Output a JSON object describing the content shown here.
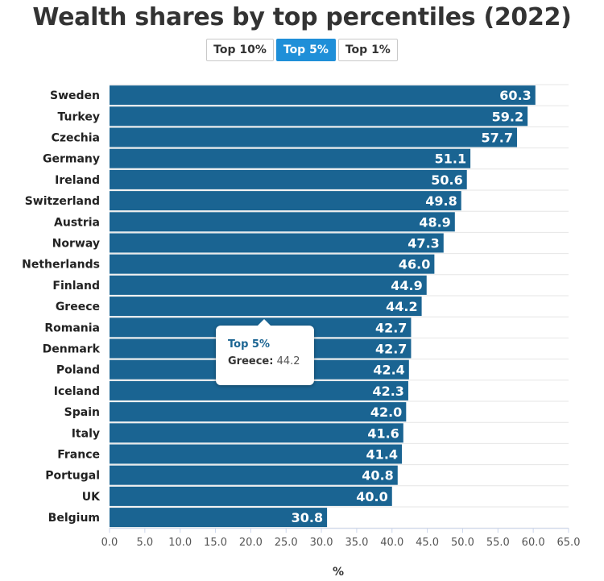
{
  "title": "Wealth shares by top percentiles (2022)",
  "toggle": {
    "options": [
      "Top 10%",
      "Top 5%",
      "Top 1%"
    ],
    "selected": "Top 5%",
    "active_color": "#1f8fd8"
  },
  "chart_data": {
    "type": "bar",
    "orientation": "horizontal",
    "title": "Wealth shares by top percentiles (2022)",
    "categories": [
      "Sweden",
      "Turkey",
      "Czechia",
      "Germany",
      "Ireland",
      "Switzerland",
      "Austria",
      "Norway",
      "Netherlands",
      "Finland",
      "Greece",
      "Romania",
      "Denmark",
      "Poland",
      "Iceland",
      "Spain",
      "Italy",
      "France",
      "Portugal",
      "UK",
      "Belgium"
    ],
    "series": [
      {
        "name": "Top 5%",
        "values": [
          60.3,
          59.2,
          57.7,
          51.1,
          50.6,
          49.8,
          48.9,
          47.3,
          46.0,
          44.9,
          44.2,
          42.7,
          42.7,
          42.4,
          42.3,
          42.0,
          41.6,
          41.4,
          40.8,
          40.0,
          30.8
        ],
        "color": "#1a6492"
      }
    ],
    "xlabel": "%",
    "xlim": [
      0,
      65
    ],
    "xticks": [
      "0.0",
      "5.0",
      "10.0",
      "15.0",
      "20.0",
      "25.0",
      "30.0",
      "35.0",
      "40.0",
      "45.0",
      "50.0",
      "55.0",
      "60.0",
      "65.0"
    ],
    "grid": true,
    "data_labels": true
  },
  "tooltip": {
    "series": "Top 5%",
    "category": "Greece:",
    "value": "44.2"
  }
}
